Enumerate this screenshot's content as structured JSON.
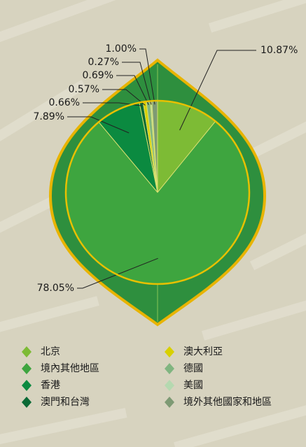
{
  "chart_data": {
    "type": "pie",
    "categories": [
      "北京",
      "境內其他地區",
      "香港",
      "澳門和台灣",
      "澳大利亞",
      "德國",
      "美國",
      "境外其他國家和地區"
    ],
    "values": [
      10.87,
      78.05,
      7.89,
      0.66,
      0.57,
      0.69,
      0.27,
      1.0
    ],
    "value_labels": [
      "10.87%",
      "78.05%",
      "7.89%",
      "0.66%",
      "0.57%",
      "0.69%",
      "0.27%",
      "1.00%"
    ],
    "colors": [
      "#7dbb35",
      "#3ea53f",
      "#0b8a40",
      "#0b6a36",
      "#d8d000",
      "#80b580",
      "#b5d9b0",
      "#7e9a74"
    ]
  }
}
